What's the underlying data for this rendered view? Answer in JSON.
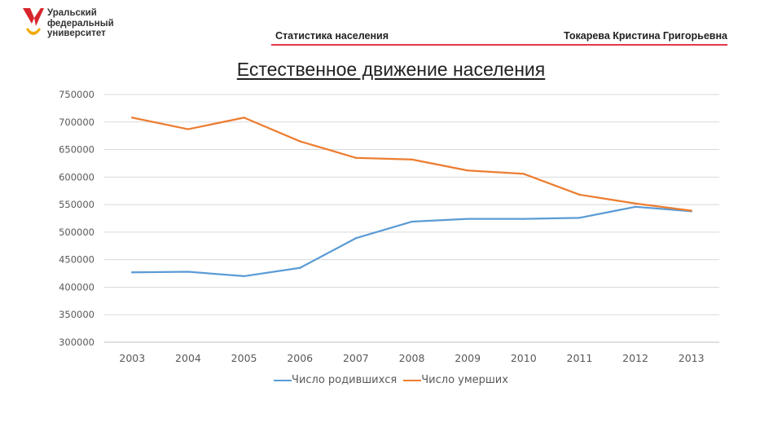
{
  "logo": {
    "lines": [
      "Уральский",
      "федеральный",
      "университет"
    ],
    "colors": {
      "red": "#d8242c",
      "yellow": "#f2a900"
    }
  },
  "header": {
    "left": "Статистика населения",
    "right": "Токарева Кристина Григорьевна",
    "rule_color": "#e8364a"
  },
  "chart_data": {
    "type": "line",
    "title": "Естественное движение населения",
    "xlabel": "",
    "ylabel": "",
    "categories": [
      "2003",
      "2004",
      "2005",
      "2006",
      "2007",
      "2008",
      "2009",
      "2010",
      "2011",
      "2012",
      "2013"
    ],
    "ylim": [
      300000,
      750000
    ],
    "yticks": [
      "300000",
      "350000",
      "400000",
      "450000",
      "500000",
      "550000",
      "600000",
      "650000",
      "700000",
      "750000"
    ],
    "grid": true,
    "legend_position": "bottom",
    "series": [
      {
        "name": "Число родившихся",
        "color": "#5b9bd5",
        "values": [
          427000,
          428000,
          420000,
          435000,
          489000,
          519000,
          524000,
          524000,
          526000,
          546000,
          538000
        ]
      },
      {
        "name": "Число умерших",
        "color": "#ed7d31",
        "values": [
          708000,
          687000,
          708000,
          665000,
          635000,
          632000,
          612000,
          606000,
          568000,
          552000,
          539000
        ]
      }
    ]
  }
}
